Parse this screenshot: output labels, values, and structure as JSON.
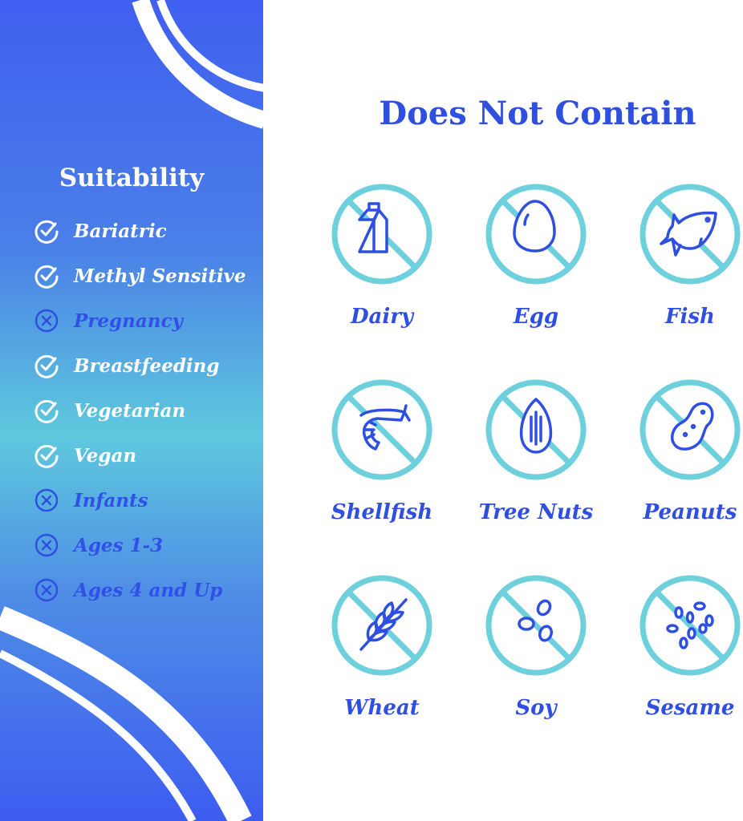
{
  "suitability": {
    "title": "Suitability",
    "items": [
      {
        "label": "Bariatric",
        "suitable": true
      },
      {
        "label": "Methyl Sensitive",
        "suitable": true
      },
      {
        "label": "Pregnancy",
        "suitable": false
      },
      {
        "label": "Breastfeeding",
        "suitable": true
      },
      {
        "label": "Vegetarian",
        "suitable": true
      },
      {
        "label": "Vegan",
        "suitable": true
      },
      {
        "label": "Infants",
        "suitable": false
      },
      {
        "label": "Ages 1-3",
        "suitable": false
      },
      {
        "label": "Ages 4 and Up",
        "suitable": false
      }
    ]
  },
  "does_not_contain": {
    "title": "Does Not Contain",
    "items": [
      {
        "label": "Dairy",
        "icon": "milk-carton-icon"
      },
      {
        "label": "Egg",
        "icon": "egg-icon"
      },
      {
        "label": "Fish",
        "icon": "fish-icon"
      },
      {
        "label": "Shellfish",
        "icon": "shrimp-icon"
      },
      {
        "label": "Tree Nuts",
        "icon": "almond-icon"
      },
      {
        "label": "Peanuts",
        "icon": "peanut-icon"
      },
      {
        "label": "Wheat",
        "icon": "wheat-icon"
      },
      {
        "label": "Soy",
        "icon": "soybean-icon"
      },
      {
        "label": "Sesame",
        "icon": "sesame-icon"
      }
    ]
  },
  "colors": {
    "brand_blue": "#2f4fe0",
    "ring_cyan": "#6dd0dc",
    "white": "#ffffff"
  }
}
